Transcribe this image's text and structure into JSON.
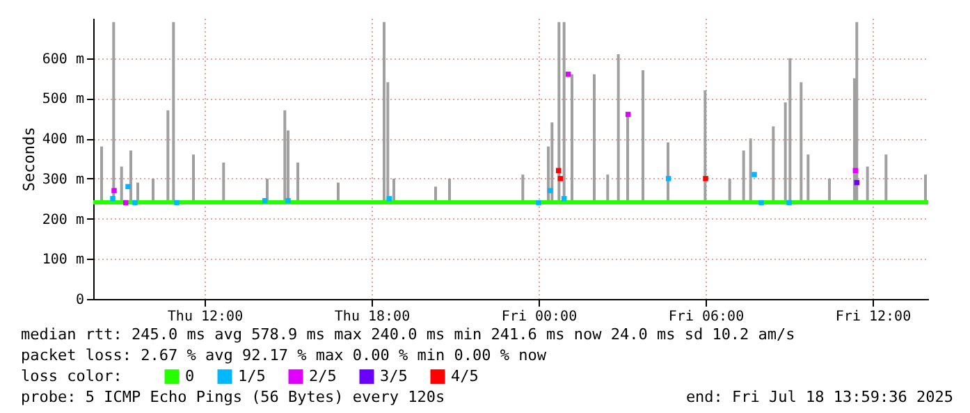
{
  "chart_data": {
    "type": "line",
    "ylabel": "Seconds",
    "legend_title": "loss color:",
    "legend": "bottom",
    "grid": true,
    "xlim": [
      "2025-07-17T08:00",
      "2025-07-18T14:00"
    ],
    "xticks": [
      {
        "value": "2025-07-17T12:00",
        "label": "Thu 12:00"
      },
      {
        "value": "2025-07-17T18:00",
        "label": "Thu 18:00"
      },
      {
        "value": "2025-07-18T00:00",
        "label": "Fri 00:00"
      },
      {
        "value": "2025-07-18T06:00",
        "label": "Fri 06:00"
      },
      {
        "value": "2025-07-18T12:00",
        "label": "Fri 12:00"
      }
    ],
    "ylim": [
      0,
      700
    ],
    "yticks": [
      0,
      {
        "value": 100,
        "label": "100 m"
      },
      {
        "value": 200,
        "label": "200 m"
      },
      {
        "value": 300,
        "label": "300 m"
      },
      {
        "value": 400,
        "label": "400 m"
      },
      {
        "value": 500,
        "label": "500 m"
      },
      {
        "value": 600,
        "label": "600 m"
      }
    ],
    "annotations": [
      "median rtt:  245.0 ms avg  578.9 ms max  240.0 ms min  241.6 ms now  24.0 ms sd  10.2   am/s",
      "packet loss: 2.67 % avg  92.17 % max  0.00 % min  0.00 % now",
      "probe:       5 ICMP Echo Pings (56 Bytes) every 120s",
      "end: Fri Jul 18 13:59:36 2025"
    ],
    "series": [
      {
        "type": "bar",
        "color": "#a0a0a0",
        "x": [
          "2025-07-17T08:18",
          "2025-07-17T08:44",
          "2025-07-17T09:01",
          "2025-07-17T09:21",
          "2025-07-17T09:36",
          "2025-07-17T10:09",
          "2025-07-17T10:41",
          "2025-07-17T10:53",
          "2025-07-17T11:36",
          "2025-07-17T12:41",
          "2025-07-17T14:15",
          "2025-07-17T14:53",
          "2025-07-17T15:00",
          "2025-07-17T15:21",
          "2025-07-17T16:48",
          "2025-07-17T18:27",
          "2025-07-17T18:35",
          "2025-07-17T18:48",
          "2025-07-17T20:18",
          "2025-07-17T20:48",
          "2025-07-17T23:26",
          "2025-07-18T00:21",
          "2025-07-18T00:29",
          "2025-07-18T00:44",
          "2025-07-18T00:55",
          "2025-07-18T01:12",
          "2025-07-18T02:00",
          "2025-07-18T02:29",
          "2025-07-18T02:52",
          "2025-07-18T03:12",
          "2025-07-18T03:45",
          "2025-07-18T04:39",
          "2025-07-18T05:59",
          "2025-07-18T06:52",
          "2025-07-18T07:22",
          "2025-07-18T07:37",
          "2025-07-18T08:26",
          "2025-07-18T08:52",
          "2025-07-18T09:02",
          "2025-07-18T09:26",
          "2025-07-18T09:41",
          "2025-07-18T10:27",
          "2025-07-18T11:21",
          "2025-07-18T11:26",
          "2025-07-18T11:49",
          "2025-07-18T12:29",
          "2025-07-18T13:54"
        ],
        "base": [
          240,
          240,
          240,
          240,
          240,
          240,
          240,
          240,
          240,
          240,
          240,
          240,
          240,
          240,
          240,
          240,
          240,
          240,
          240,
          240,
          240,
          240,
          240,
          240,
          240,
          240,
          240,
          240,
          240,
          240,
          240,
          240,
          240,
          240,
          240,
          240,
          240,
          240,
          240,
          240,
          240,
          240,
          240,
          240,
          240,
          240,
          240
        ],
        "values": [
          140,
          450,
          90,
          130,
          50,
          60,
          230,
          450,
          120,
          100,
          60,
          230,
          180,
          100,
          50,
          450,
          300,
          60,
          40,
          60,
          70,
          140,
          200,
          450,
          450,
          320,
          320,
          70,
          370,
          220,
          330,
          150,
          280,
          60,
          130,
          160,
          190,
          250,
          360,
          300,
          120,
          60,
          310,
          450,
          90,
          120,
          70
        ]
      },
      {
        "name": "0",
        "color": "#26ff00",
        "line_style": "solid",
        "x": [
          "2025-07-17T08:00",
          "2025-07-17T10:00",
          "2025-07-17T12:00",
          "2025-07-17T14:00",
          "2025-07-17T16:00",
          "2025-07-17T18:00",
          "2025-07-17T20:00",
          "2025-07-17T22:00",
          "2025-07-18T00:00",
          "2025-07-18T02:00",
          "2025-07-18T04:00",
          "2025-07-18T06:00",
          "2025-07-18T08:00",
          "2025-07-18T10:00",
          "2025-07-18T12:00",
          "2025-07-18T14:00"
        ],
        "values": [
          241,
          241,
          241,
          241,
          241,
          241,
          241,
          241,
          241,
          241,
          241,
          241,
          241,
          241,
          241,
          241
        ]
      },
      {
        "name": "1/5",
        "type": "scatter",
        "marker": "square",
        "color": "#00b8ff",
        "x": [
          "2025-07-17T08:42",
          "2025-07-17T09:15",
          "2025-07-17T09:30",
          "2025-07-17T11:00",
          "2025-07-17T14:10",
          "2025-07-17T15:00",
          "2025-07-17T18:38",
          "2025-07-18T00:00",
          "2025-07-18T00:25",
          "2025-07-18T00:55",
          "2025-07-18T04:40",
          "2025-07-18T07:45",
          "2025-07-18T08:00",
          "2025-07-18T09:00"
        ],
        "values": [
          250,
          280,
          240,
          240,
          245,
          245,
          250,
          240,
          270,
          250,
          300,
          310,
          240,
          240
        ]
      },
      {
        "name": "2/5",
        "type": "scatter",
        "marker": "square",
        "color": "#e000ff",
        "x": [
          "2025-07-17T08:45",
          "2025-07-17T09:10",
          "2025-07-18T01:04",
          "2025-07-18T03:13",
          "2025-07-18T11:23"
        ],
        "values": [
          270,
          240,
          560,
          460,
          320
        ]
      },
      {
        "name": "3/5",
        "type": "scatter",
        "marker": "square",
        "color": "#6a00ff",
        "x": [
          "2025-07-18T11:26"
        ],
        "values": [
          290
        ]
      },
      {
        "name": "4/5",
        "type": "scatter",
        "marker": "square",
        "color": "#ff0000",
        "x": [
          "2025-07-18T00:43",
          "2025-07-18T00:47",
          "2025-07-18T06:00"
        ],
        "values": [
          320,
          300,
          300
        ]
      }
    ]
  }
}
